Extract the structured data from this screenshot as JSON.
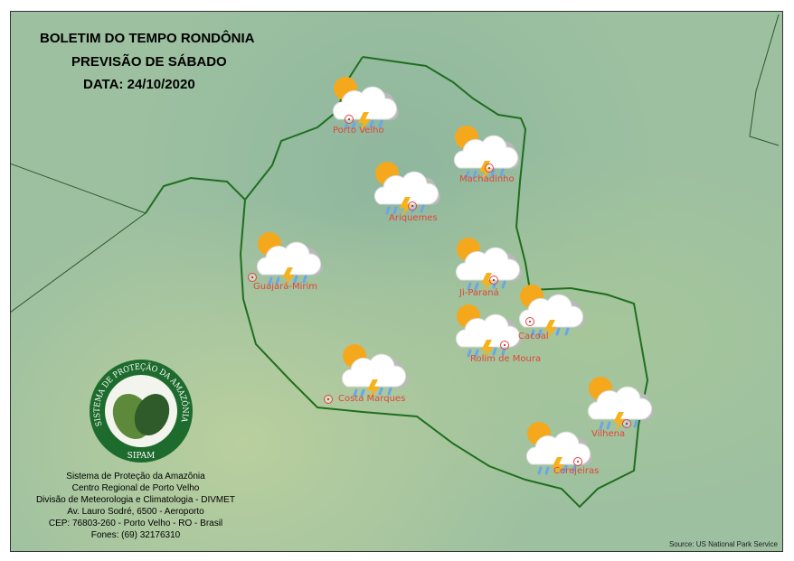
{
  "header": {
    "line1": "BOLETIM DO TEMPO RONDÔNIA",
    "line2": "PREVISÃO DE SÁBADO",
    "line3": "DATA: 24/10/2020"
  },
  "forecast_icon": "sun-cloud-rain-thunderstorm-icon",
  "cities": [
    {
      "name": "Porto Velho",
      "forecast": "sun-cloud-rain-thunderstorm"
    },
    {
      "name": "Machadinho",
      "forecast": "sun-cloud-rain-thunderstorm"
    },
    {
      "name": "Ariquemes",
      "forecast": "sun-cloud-rain-thunderstorm"
    },
    {
      "name": "Guajará-Mirim",
      "forecast": "sun-cloud-rain-thunderstorm"
    },
    {
      "name": "Ji-Paraná",
      "forecast": "sun-cloud-rain-thunderstorm"
    },
    {
      "name": "Cacoal",
      "forecast": "sun-cloud-rain-thunderstorm"
    },
    {
      "name": "Rolim de Moura",
      "forecast": "sun-cloud-rain-thunderstorm"
    },
    {
      "name": "Costa Marques",
      "forecast": "sun-cloud-rain-thunderstorm"
    },
    {
      "name": "Vilhena",
      "forecast": "sun-cloud-rain-thunderstorm"
    },
    {
      "name": "Cerejeiras",
      "forecast": "sun-cloud-rain-thunderstorm"
    }
  ],
  "logo": {
    "ring_text": "SISTEMA DE PROTEÇÃO DA AMAZÔNIA",
    "bottom_text": "SIPAM"
  },
  "info": [
    "Sistema de Proteção da Amazônia",
    "Centro Regional de Porto Velho",
    "Divisão de Meteorologia e Climatologia - DIVMET",
    "Av. Lauro Sodré, 6500 - Aeroporto",
    "CEP: 76803-260 - Porto Velho - RO - Brasil",
    "Fones: (69) 32176310"
  ],
  "source": "Source: US National Park Service",
  "colors": {
    "border": "#1f6e1f",
    "city_label": "#e0463a",
    "sipam_green": "#1e6b2e"
  }
}
